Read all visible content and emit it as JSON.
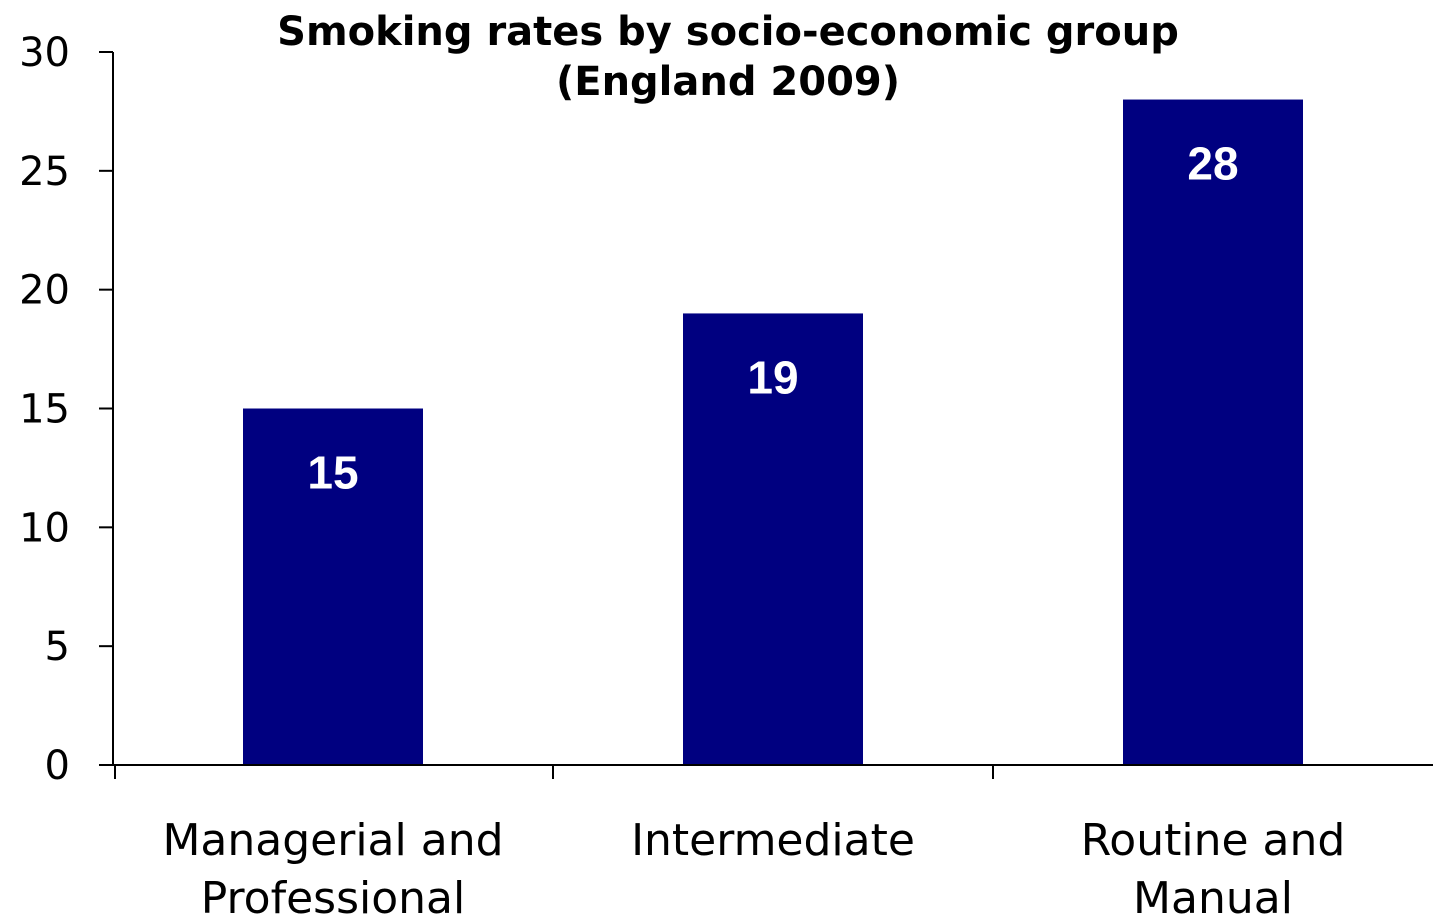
{
  "chart_data": {
    "type": "bar",
    "title": [
      "Smoking rates by socio-economic group",
      "(England 2009)"
    ],
    "categories": [
      [
        "Managerial and",
        "Professional"
      ],
      [
        "Intermediate"
      ],
      [
        "Routine and",
        "Manual"
      ]
    ],
    "values": [
      15,
      19,
      28
    ],
    "data_labels": [
      "15",
      "19",
      "28"
    ],
    "yticks": [
      "0",
      "5",
      "10",
      "15",
      "20",
      "25",
      "30"
    ],
    "ylim": [
      0,
      30
    ],
    "xlabel": "",
    "ylabel": "",
    "grid": false,
    "legend": "none",
    "bar_color": "#000080"
  }
}
